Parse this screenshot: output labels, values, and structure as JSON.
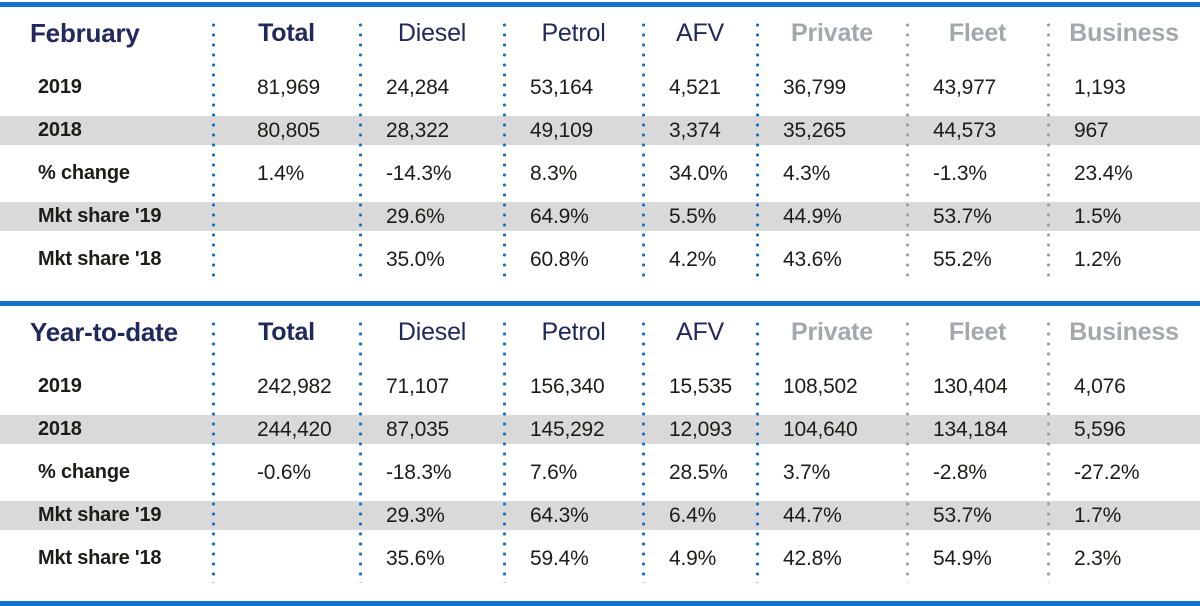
{
  "colors": {
    "rule_blue": "#1472cc",
    "dot_gray": "#9b9fa4",
    "navy": "#21295c",
    "gray_header": "#a4a7ac",
    "band_gray": "#d9d9d9",
    "text_black": "#1c1c1a"
  },
  "table": {
    "column_header_styles": [
      "navy-bold",
      "navy",
      "navy",
      "navy",
      "gray",
      "gray",
      "gray"
    ],
    "separator_colors": [
      "blue",
      "blue",
      "blue",
      "blue",
      "blue",
      "gray",
      "gray"
    ]
  },
  "chart_data": [
    {
      "type": "table",
      "title": "February",
      "columns": [
        "Total",
        "Diesel",
        "Petrol",
        "AFV",
        "Private",
        "Fleet",
        "Business"
      ],
      "row_labels": [
        "2019",
        "2018",
        "% change",
        "Mkt share '19",
        "Mkt share '18"
      ],
      "shaded_rows": [
        1,
        3
      ],
      "rows": [
        [
          "81,969",
          "24,284",
          "53,164",
          "4,521",
          "36,799",
          "43,977",
          "1,193"
        ],
        [
          "80,805",
          "28,322",
          "49,109",
          "3,374",
          "35,265",
          "44,573",
          "967"
        ],
        [
          "1.4%",
          "-14.3%",
          "8.3%",
          "34.0%",
          "4.3%",
          "-1.3%",
          "23.4%"
        ],
        [
          "",
          "29.6%",
          "64.9%",
          "5.5%",
          "44.9%",
          "53.7%",
          "1.5%"
        ],
        [
          "",
          "35.0%",
          "60.8%",
          "4.2%",
          "43.6%",
          "55.2%",
          "1.2%"
        ]
      ]
    },
    {
      "type": "table",
      "title": "Year-to-date",
      "columns": [
        "Total",
        "Diesel",
        "Petrol",
        "AFV",
        "Private",
        "Fleet",
        "Business"
      ],
      "row_labels": [
        "2019",
        "2018",
        "% change",
        "Mkt share '19",
        "Mkt share '18"
      ],
      "shaded_rows": [
        1,
        3
      ],
      "rows": [
        [
          "242,982",
          "71,107",
          "156,340",
          "15,535",
          "108,502",
          "130,404",
          "4,076"
        ],
        [
          "244,420",
          "87,035",
          "145,292",
          "12,093",
          "104,640",
          "134,184",
          "5,596"
        ],
        [
          "-0.6%",
          "-18.3%",
          "7.6%",
          "28.5%",
          "3.7%",
          "-2.8%",
          "-27.2%"
        ],
        [
          "",
          "29.3%",
          "64.3%",
          "6.4%",
          "44.7%",
          "53.7%",
          "1.7%"
        ],
        [
          "",
          "35.6%",
          "59.4%",
          "4.9%",
          "42.8%",
          "54.9%",
          "2.3%"
        ]
      ]
    }
  ]
}
